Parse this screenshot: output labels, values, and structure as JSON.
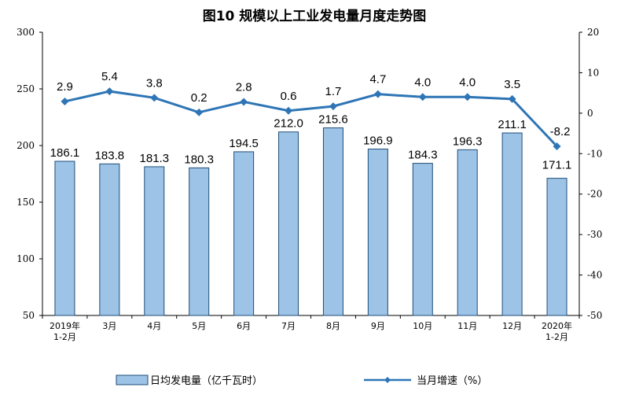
{
  "chart_data": {
    "type": "bar",
    "title": "图10  规模以上工业发电量月度走势图",
    "categories": [
      "2019年\n1-2月",
      "3月",
      "4月",
      "5月",
      "6月",
      "7月",
      "8月",
      "9月",
      "10月",
      "11月",
      "12月",
      "2020年\n1-2月"
    ],
    "series": [
      {
        "name": "日均发电量（亿千瓦时）",
        "type": "bar",
        "axis": "left",
        "values": [
          186.1,
          183.8,
          181.3,
          180.3,
          194.5,
          212.0,
          215.6,
          196.9,
          184.3,
          196.3,
          211.1,
          171.1
        ],
        "value_labels": [
          "186.1",
          "183.8",
          "181.3",
          "180.3",
          "194.5",
          "212.0",
          "215.6",
          "196.9",
          "184.3",
          "196.3",
          "211.1",
          "171.1"
        ],
        "color": "#9dc3e6"
      },
      {
        "name": "当月增速（%）",
        "type": "line",
        "axis": "right",
        "values": [
          2.9,
          5.4,
          3.8,
          0.2,
          2.8,
          0.6,
          1.7,
          4.7,
          4.0,
          4.0,
          3.5,
          -8.2
        ],
        "value_labels": [
          "2.9",
          "5.4",
          "3.8",
          "0.2",
          "2.8",
          "0.6",
          "1.7",
          "4.7",
          "4.0",
          "4.0",
          "3.5",
          "-8.2"
        ],
        "color": "#2e75b6"
      }
    ],
    "y_left": {
      "range": [
        50,
        300
      ],
      "ticks": [
        "300",
        "250",
        "200",
        "150",
        "100",
        "50"
      ],
      "tick_values": [
        300,
        250,
        200,
        150,
        100,
        50
      ]
    },
    "y_right": {
      "range": [
        -50,
        20
      ],
      "ticks": [
        "20",
        "10",
        "0",
        "-10",
        "-20",
        "-30",
        "-40",
        "-50"
      ],
      "tick_values": [
        20,
        10,
        0,
        -10,
        -20,
        -30,
        -40,
        -50
      ]
    },
    "grid": false,
    "legend": "bottom"
  }
}
